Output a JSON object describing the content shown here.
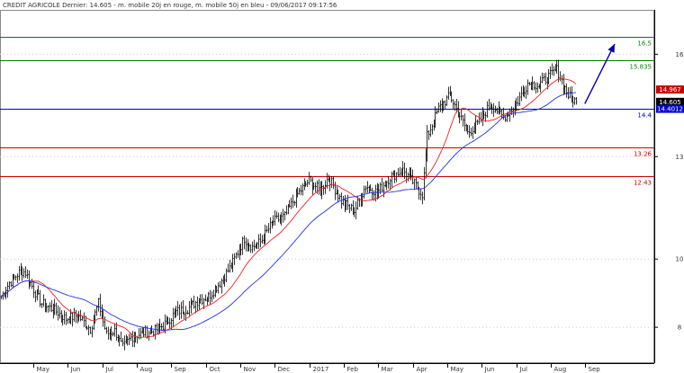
{
  "chart_data": {
    "type": "candlestick",
    "title": "CREDIT AGRICOLE Dernier: 14.605 - m. mobile 20j en rouge, m. mobile 50j en bleu - 09/06/2017 09:17:56",
    "y_ticks": [
      "16",
      "13",
      "10",
      "8"
    ],
    "ylim": [
      6.95,
      17.3
    ],
    "x_labels": [
      "May",
      "Jun",
      "Jul",
      "Aug",
      "Sep",
      "Oct",
      "Nov",
      "Dec",
      "2017",
      "Feb",
      "Mar",
      "Apr",
      "May",
      "Jun",
      "Jul",
      "Aug",
      "Sep"
    ],
    "levels": [
      {
        "label": "16.5",
        "value": 16.5,
        "color": "#008000"
      },
      {
        "label": "15.835",
        "value": 15.835,
        "color": "#008000"
      },
      {
        "label": "14.4",
        "value": 14.4,
        "color": "#0000cc"
      },
      {
        "label": "13.26",
        "value": 13.26,
        "color": "#cc0000"
      },
      {
        "label": "12.43",
        "value": 12.43,
        "color": "#cc0000"
      }
    ],
    "price_tags": [
      {
        "label": "14.967",
        "value": 14.967,
        "color": "#cc0000"
      },
      {
        "label": "14.605",
        "value": 14.605,
        "color": "#000000"
      },
      {
        "label": "14.4012",
        "value": 14.4012,
        "color": "#0000cc"
      }
    ],
    "close_anchors": [
      [
        0,
        8.9
      ],
      [
        5,
        9.3
      ],
      [
        12,
        9.65
      ],
      [
        15,
        9.6
      ],
      [
        20,
        9.1
      ],
      [
        25,
        8.7
      ],
      [
        33,
        8.5
      ],
      [
        40,
        8.25
      ],
      [
        47,
        8.35
      ],
      [
        55,
        7.95
      ],
      [
        60,
        8.7
      ],
      [
        65,
        7.8
      ],
      [
        70,
        7.9
      ],
      [
        75,
        7.4
      ],
      [
        80,
        7.7
      ],
      [
        88,
        7.85
      ],
      [
        95,
        7.9
      ],
      [
        100,
        8.05
      ],
      [
        108,
        8.45
      ],
      [
        115,
        8.55
      ],
      [
        122,
        8.8
      ],
      [
        128,
        8.9
      ],
      [
        135,
        9.3
      ],
      [
        142,
        9.8
      ],
      [
        150,
        10.6
      ],
      [
        155,
        10.35
      ],
      [
        160,
        10.5
      ],
      [
        168,
        11.1
      ],
      [
        175,
        11.25
      ],
      [
        182,
        11.85
      ],
      [
        190,
        12.3
      ],
      [
        197,
        12.0
      ],
      [
        202,
        12.4
      ],
      [
        210,
        11.7
      ],
      [
        218,
        11.4
      ],
      [
        225,
        12.15
      ],
      [
        232,
        11.95
      ],
      [
        240,
        12.4
      ],
      [
        248,
        12.6
      ],
      [
        255,
        12.2
      ],
      [
        260,
        11.9
      ],
      [
        263,
        13.6
      ],
      [
        270,
        14.4
      ],
      [
        277,
        14.8
      ],
      [
        282,
        14.3
      ],
      [
        288,
        13.7
      ],
      [
        295,
        14.0
      ],
      [
        302,
        14.55
      ],
      [
        310,
        14.15
      ],
      [
        318,
        14.55
      ],
      [
        325,
        15.15
      ],
      [
        332,
        15.1
      ],
      [
        338,
        15.35
      ],
      [
        343,
        15.55
      ],
      [
        350,
        14.8
      ],
      [
        355,
        14.605
      ]
    ],
    "n_bars": 356,
    "ma20_color": "#ee2222",
    "ma50_color": "#2233dd",
    "bar_color": "#000000",
    "arrow": {
      "from": [
        356,
        14.55
      ],
      "to": [
        370,
        16.3
      ],
      "color": "#0000aa"
    }
  }
}
